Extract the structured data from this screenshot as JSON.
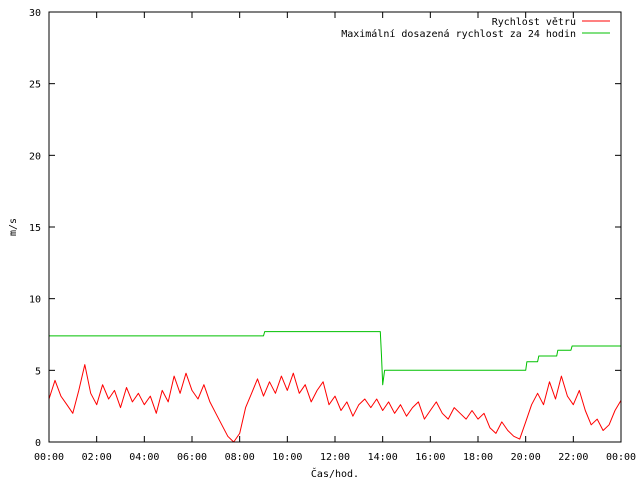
{
  "chart_data": {
    "type": "line",
    "title": "",
    "xlabel": "Čas/hod.",
    "ylabel": "m/s",
    "xlim": [
      0,
      24
    ],
    "ylim": [
      0,
      30
    ],
    "x_ticks": [
      "00:00",
      "02:00",
      "04:00",
      "06:00",
      "08:00",
      "10:00",
      "12:00",
      "14:00",
      "16:00",
      "18:00",
      "20:00",
      "22:00",
      "00:00"
    ],
    "y_ticks": [
      "0",
      "5",
      "10",
      "15",
      "20",
      "25",
      "30"
    ],
    "grid": false,
    "legend_position": "top-right",
    "series": [
      {
        "name": "Rychlost větru",
        "color": "#ff0000",
        "x": [
          0.0,
          0.25,
          0.5,
          0.75,
          1.0,
          1.25,
          1.5,
          1.75,
          2.0,
          2.25,
          2.5,
          2.75,
          3.0,
          3.25,
          3.5,
          3.75,
          4.0,
          4.25,
          4.5,
          4.75,
          5.0,
          5.25,
          5.5,
          5.75,
          6.0,
          6.25,
          6.5,
          6.75,
          7.0,
          7.25,
          7.5,
          7.75,
          8.0,
          8.25,
          8.5,
          8.75,
          9.0,
          9.25,
          9.5,
          9.75,
          10.0,
          10.25,
          10.5,
          10.75,
          11.0,
          11.25,
          11.5,
          11.75,
          12.0,
          12.25,
          12.5,
          12.75,
          13.0,
          13.25,
          13.5,
          13.75,
          14.0,
          14.25,
          14.5,
          14.75,
          15.0,
          15.25,
          15.5,
          15.75,
          16.0,
          16.25,
          16.5,
          16.75,
          17.0,
          17.25,
          17.5,
          17.75,
          18.0,
          18.25,
          18.5,
          18.75,
          19.0,
          19.25,
          19.5,
          19.75,
          20.0,
          20.25,
          20.5,
          20.75,
          21.0,
          21.25,
          21.5,
          21.75,
          22.0,
          22.25,
          22.5,
          22.75,
          23.0,
          23.25,
          23.5,
          23.75,
          24.0
        ],
        "y": [
          3.0,
          4.3,
          3.2,
          2.6,
          2.0,
          3.6,
          5.4,
          3.4,
          2.6,
          4.0,
          3.0,
          3.6,
          2.4,
          3.8,
          2.8,
          3.4,
          2.6,
          3.2,
          2.0,
          3.6,
          2.8,
          4.6,
          3.4,
          4.8,
          3.6,
          3.0,
          4.0,
          2.8,
          2.0,
          1.2,
          0.4,
          0.0,
          0.6,
          2.4,
          3.4,
          4.4,
          3.2,
          4.2,
          3.4,
          4.6,
          3.6,
          4.8,
          3.4,
          4.0,
          2.8,
          3.6,
          4.2,
          2.6,
          3.2,
          2.2,
          2.8,
          1.8,
          2.6,
          3.0,
          2.4,
          3.0,
          2.2,
          2.8,
          2.0,
          2.6,
          1.8,
          2.4,
          2.8,
          1.6,
          2.2,
          2.8,
          2.0,
          1.6,
          2.4,
          2.0,
          1.6,
          2.2,
          1.6,
          2.0,
          1.0,
          0.6,
          1.4,
          0.8,
          0.4,
          0.2,
          1.4,
          2.6,
          3.4,
          2.6,
          4.2,
          3.0,
          4.6,
          3.2,
          2.6,
          3.6,
          2.2,
          1.2,
          1.6,
          0.8,
          1.2,
          2.2,
          2.9
        ]
      },
      {
        "name": "Maximální dosazená rychlost za 24 hodin",
        "color": "#00c000",
        "x": [
          0.0,
          9.0,
          9.05,
          13.9,
          13.95,
          14.0,
          14.08,
          20.0,
          20.05,
          20.5,
          20.55,
          21.3,
          21.35,
          21.9,
          21.95,
          24.0
        ],
        "y": [
          7.4,
          7.4,
          7.7,
          7.7,
          6.0,
          4.0,
          5.0,
          5.0,
          5.6,
          5.6,
          6.0,
          6.0,
          6.4,
          6.4,
          6.7,
          6.7
        ]
      }
    ]
  }
}
